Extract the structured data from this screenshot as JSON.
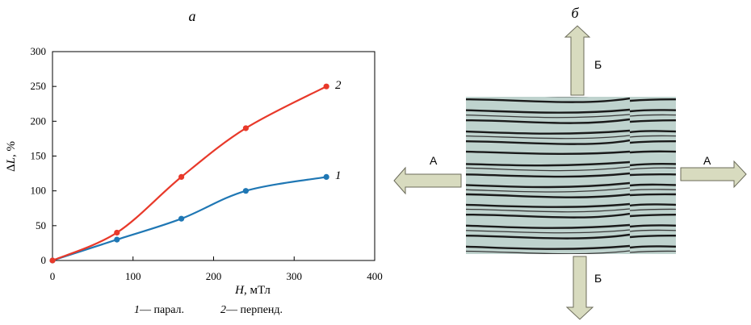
{
  "panels": {
    "a": {
      "label": "а"
    },
    "b": {
      "label": "б"
    }
  },
  "chart_data": {
    "type": "line",
    "x_axis": {
      "label_var": "H",
      "label_unit": ", мТл",
      "lim": [
        0,
        400
      ],
      "ticks": [
        0,
        100,
        200,
        300,
        400
      ]
    },
    "y_axis": {
      "label_var": "L",
      "label_prefix": "Δ",
      "label_unit": ", %",
      "lim": [
        0,
        300
      ],
      "ticks": [
        0,
        50,
        100,
        150,
        200,
        250,
        300
      ]
    },
    "grid": false,
    "series": [
      {
        "id": "1",
        "name": "парал.",
        "color": "#1f77b4",
        "x": [
          0,
          80,
          160,
          240,
          340
        ],
        "y": [
          0,
          30,
          60,
          100,
          120
        ]
      },
      {
        "id": "2",
        "name": "перпенд.",
        "color": "#e8392a",
        "x": [
          0,
          80,
          160,
          240,
          340
        ],
        "y": [
          0,
          40,
          120,
          190,
          250
        ]
      }
    ],
    "legend": [
      {
        "num": "1",
        "text": "— парал."
      },
      {
        "num": "2",
        "text": "— перпенд."
      }
    ]
  },
  "diagram": {
    "horizontal_arrow_label": "А",
    "vertical_arrow_label": "Б"
  }
}
